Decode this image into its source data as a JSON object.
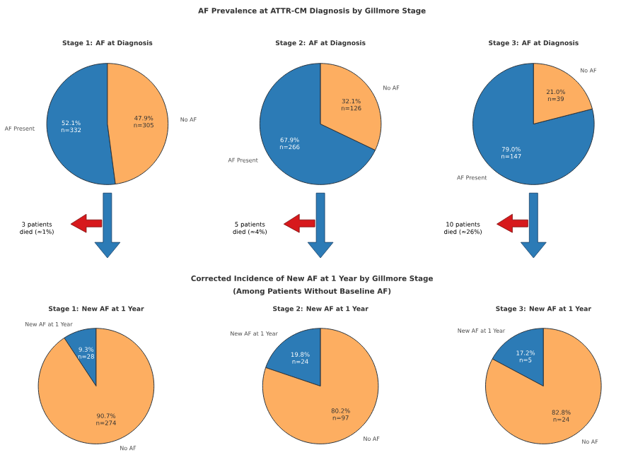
{
  "chart_data": [
    {
      "type": "other",
      "title": "AF Prevalence at ATTR-CM Diagnosis by Gillmore Stage"
    },
    {
      "type": "pie",
      "title": "Stage 1: AF at Diagnosis",
      "categories": [
        "AF Present",
        "No AF"
      ],
      "values": [
        52.1,
        47.9
      ],
      "colors": [
        "#2c7bb6",
        "#fdae61"
      ],
      "value_labels": [
        "52.1% n=332",
        "47.9% n=305"
      ],
      "annotations": [
        "3 patients died (≈1%)"
      ]
    },
    {
      "type": "pie",
      "title": "Stage 2: AF at Diagnosis",
      "categories": [
        "AF Present",
        "No AF"
      ],
      "values": [
        67.9,
        32.1
      ],
      "colors": [
        "#2c7bb6",
        "#fdae61"
      ],
      "value_labels": [
        "67.9% n=266",
        "32.1% n=126"
      ],
      "annotations": [
        "5 patients died (≈4%)"
      ]
    },
    {
      "type": "pie",
      "title": "Stage 3: AF at Diagnosis",
      "categories": [
        "AF Present",
        "No AF"
      ],
      "values": [
        79.0,
        21.0
      ],
      "colors": [
        "#2c7bb6",
        "#fdae61"
      ],
      "value_labels": [
        "79.0% n=147",
        "21.0% n=39"
      ],
      "annotations": [
        "10 patients died (≈26%)"
      ]
    },
    {
      "type": "other",
      "title": "Corrected Incidence of New AF at 1 Year by Gillmore Stage",
      "subtitle": "(Among Patients Without Baseline AF)"
    },
    {
      "type": "pie",
      "title": "Stage 1: New AF at 1 Year",
      "categories": [
        "New AF at 1 Year",
        "No AF"
      ],
      "values": [
        9.3,
        90.7
      ],
      "colors": [
        "#2c7bb6",
        "#fdae61"
      ],
      "value_labels": [
        "9.3% n=28",
        "90.7% n=274"
      ]
    },
    {
      "type": "pie",
      "title": "Stage 2: New AF at 1 Year",
      "categories": [
        "New AF at 1 Year",
        "No AF"
      ],
      "values": [
        19.8,
        80.2
      ],
      "colors": [
        "#2c7bb6",
        "#fdae61"
      ],
      "value_labels": [
        "19.8% n=24",
        "80.2% n=97"
      ]
    },
    {
      "type": "pie",
      "title": "Stage 3: New AF at 1 Year",
      "categories": [
        "New AF at 1 Year",
        "No AF"
      ],
      "values": [
        17.2,
        82.8
      ],
      "colors": [
        "#2c7bb6",
        "#fdae61"
      ],
      "value_labels": [
        "17.2% n=5",
        "82.8% n=24"
      ]
    }
  ]
}
